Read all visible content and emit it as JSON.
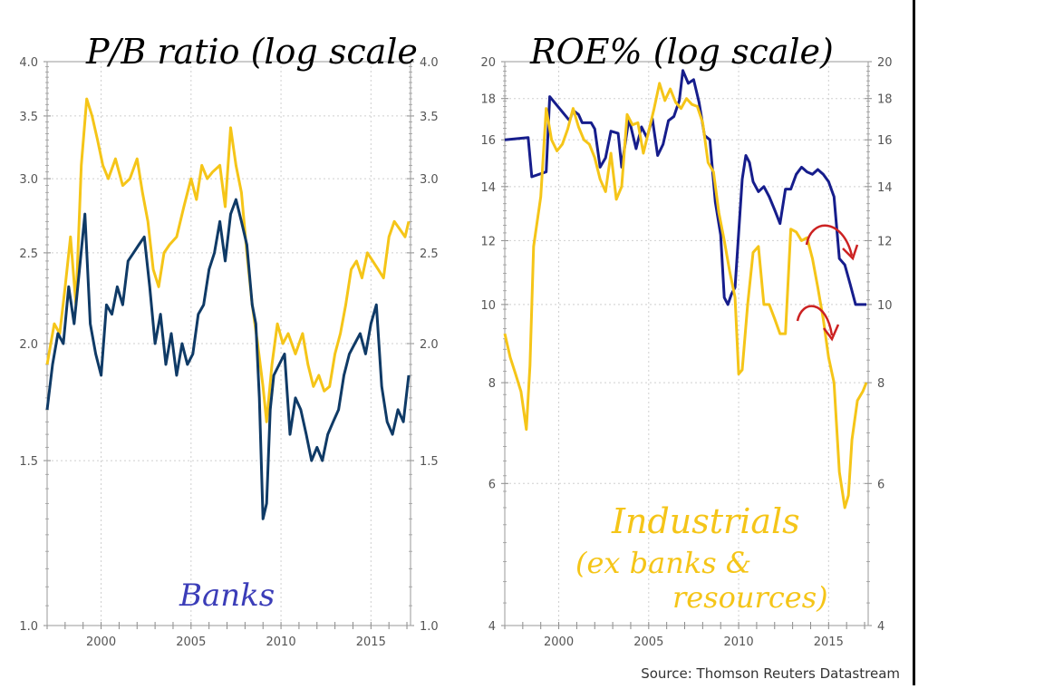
{
  "source": "Source: Thomson Reuters Datastream",
  "colors": {
    "dark_blue": "#0f3a66",
    "navy": "#161d8c",
    "yellow": "#f5c518",
    "red": "#cc2222",
    "grid": "#cfcfcf"
  },
  "chart_data": [
    {
      "type": "line",
      "title": "P/B ratio (log scale",
      "y_scale": "log",
      "ylim": [
        1.0,
        4.0
      ],
      "yticks": [
        "1.0",
        "1.5",
        "2.0",
        "2.5",
        "3.0",
        "3.5",
        "4.0"
      ],
      "xlim": [
        1997.0,
        2017.2
      ],
      "xticks": [
        "2000",
        "2005",
        "2010",
        "2015"
      ],
      "grid": true,
      "annotations": [
        "Banks"
      ],
      "series": [
        {
          "color": "#f5c518",
          "x": [
            1997.0,
            1997.4,
            1997.7,
            1998.0,
            1998.3,
            1998.6,
            1998.9,
            1999.2,
            1999.5,
            1999.8,
            2000.1,
            2000.4,
            2000.8,
            2001.2,
            2001.6,
            2002.0,
            2002.3,
            2002.6,
            2002.9,
            2003.2,
            2003.5,
            2003.8,
            2004.2,
            2004.6,
            2005.0,
            2005.3,
            2005.6,
            2005.9,
            2006.2,
            2006.6,
            2006.9,
            2007.2,
            2007.5,
            2007.8,
            2008.1,
            2008.4,
            2008.7,
            2009.0,
            2009.2,
            2009.5,
            2009.8,
            2010.1,
            2010.4,
            2010.8,
            2011.2,
            2011.5,
            2011.8,
            2012.1,
            2012.4,
            2012.7,
            2013.0,
            2013.3,
            2013.6,
            2013.9,
            2014.2,
            2014.5,
            2014.8,
            2015.1,
            2015.4,
            2015.7,
            2016.0,
            2016.3,
            2016.6,
            2016.9,
            2017.1
          ],
          "y": [
            1.9,
            2.1,
            2.05,
            2.3,
            2.6,
            2.2,
            3.1,
            3.65,
            3.5,
            3.3,
            3.1,
            3.0,
            3.15,
            2.95,
            3.0,
            3.15,
            2.9,
            2.7,
            2.4,
            2.3,
            2.5,
            2.55,
            2.6,
            2.8,
            3.0,
            2.85,
            3.1,
            3.0,
            3.05,
            3.1,
            2.8,
            3.4,
            3.1,
            2.9,
            2.5,
            2.2,
            2.0,
            1.8,
            1.65,
            1.9,
            2.1,
            2.0,
            2.05,
            1.95,
            2.05,
            1.9,
            1.8,
            1.85,
            1.78,
            1.8,
            1.95,
            2.05,
            2.2,
            2.4,
            2.45,
            2.35,
            2.5,
            2.45,
            2.4,
            2.35,
            2.6,
            2.7,
            2.65,
            2.6,
            2.7
          ]
        },
        {
          "color": "#0f3a66",
          "x": [
            1997.0,
            1997.3,
            1997.6,
            1997.9,
            1998.2,
            1998.5,
            1998.8,
            1999.1,
            1999.4,
            1999.7,
            2000.0,
            2000.3,
            2000.6,
            2000.9,
            2001.2,
            2001.5,
            2001.8,
            2002.1,
            2002.4,
            2002.7,
            2003.0,
            2003.3,
            2003.6,
            2003.9,
            2004.2,
            2004.5,
            2004.8,
            2005.1,
            2005.4,
            2005.7,
            2006.0,
            2006.3,
            2006.6,
            2006.9,
            2007.2,
            2007.5,
            2007.8,
            2008.1,
            2008.4,
            2008.6,
            2008.8,
            2009.0,
            2009.2,
            2009.4,
            2009.6,
            2009.9,
            2010.2,
            2010.5,
            2010.8,
            2011.1,
            2011.4,
            2011.7,
            2012.0,
            2012.3,
            2012.6,
            2012.9,
            2013.2,
            2013.5,
            2013.8,
            2014.1,
            2014.4,
            2014.7,
            2015.0,
            2015.3,
            2015.6,
            2015.9,
            2016.2,
            2016.5,
            2016.8,
            2017.1
          ],
          "y": [
            1.7,
            1.9,
            2.05,
            2.0,
            2.3,
            2.1,
            2.4,
            2.75,
            2.1,
            1.95,
            1.85,
            2.2,
            2.15,
            2.3,
            2.2,
            2.45,
            2.5,
            2.55,
            2.6,
            2.3,
            2.0,
            2.15,
            1.9,
            2.05,
            1.85,
            2.0,
            1.9,
            1.95,
            2.15,
            2.2,
            2.4,
            2.5,
            2.7,
            2.45,
            2.75,
            2.85,
            2.7,
            2.55,
            2.2,
            2.1,
            1.75,
            1.3,
            1.35,
            1.7,
            1.85,
            1.9,
            1.95,
            1.6,
            1.75,
            1.7,
            1.6,
            1.5,
            1.55,
            1.5,
            1.6,
            1.65,
            1.7,
            1.85,
            1.95,
            2.0,
            2.05,
            1.95,
            2.1,
            2.2,
            1.8,
            1.65,
            1.6,
            1.7,
            1.65,
            1.85
          ]
        }
      ]
    },
    {
      "type": "line",
      "title": "ROE% (log scale)",
      "y_scale": "log",
      "ylim": [
        4,
        20
      ],
      "yticks": [
        "4",
        "6",
        "8",
        "10",
        "12",
        "14",
        "16",
        "18",
        "20"
      ],
      "xlim": [
        1997.0,
        2017.2
      ],
      "xticks": [
        "2000",
        "2005",
        "2010",
        "2015"
      ],
      "grid": true,
      "annotations": [
        "Industrials",
        "(ex banks &",
        "resources)"
      ],
      "series": [
        {
          "color": "#161d8c",
          "x": [
            1997.0,
            1998.3,
            1998.5,
            1999.3,
            1999.5,
            2000.6,
            2000.8,
            2001.1,
            2001.3,
            2001.8,
            2002.0,
            2002.3,
            2002.6,
            2002.9,
            2003.3,
            2003.5,
            2003.9,
            2004.3,
            2004.6,
            2004.9,
            2005.2,
            2005.5,
            2005.8,
            2006.1,
            2006.4,
            2006.7,
            2006.9,
            2007.2,
            2007.5,
            2007.8,
            2008.1,
            2008.4,
            2008.7,
            2009.0,
            2009.2,
            2009.4,
            2009.6,
            2009.8,
            2010.2,
            2010.4,
            2010.6,
            2010.8,
            2011.1,
            2011.4,
            2011.7,
            2012.0,
            2012.3,
            2012.6,
            2012.9,
            2013.2,
            2013.5,
            2013.8,
            2014.1,
            2014.4,
            2014.7,
            2015.0,
            2015.3,
            2015.6,
            2015.9,
            2016.2,
            2016.5,
            2016.8,
            2017.1
          ],
          "y": [
            16.0,
            16.1,
            14.4,
            14.6,
            18.1,
            16.9,
            17.4,
            17.2,
            16.8,
            16.8,
            16.5,
            14.8,
            15.2,
            16.4,
            16.3,
            14.8,
            17.0,
            15.6,
            16.6,
            16.1,
            17.0,
            15.3,
            15.8,
            16.9,
            17.1,
            17.9,
            19.5,
            18.8,
            19.0,
            17.8,
            16.2,
            16.0,
            13.4,
            12.2,
            10.2,
            10.0,
            10.3,
            10.5,
            14.3,
            15.3,
            15.0,
            14.2,
            13.8,
            14.0,
            13.6,
            13.1,
            12.6,
            13.9,
            13.9,
            14.5,
            14.8,
            14.6,
            14.5,
            14.7,
            14.5,
            14.2,
            13.6,
            11.4,
            11.2,
            10.6,
            10.0,
            10.0,
            10.0
          ]
        },
        {
          "color": "#f5c518",
          "x": [
            1997.0,
            1997.3,
            1997.6,
            1997.9,
            1998.2,
            1998.4,
            1998.6,
            1999.0,
            1999.3,
            1999.6,
            1999.9,
            2000.2,
            2000.5,
            2000.8,
            2001.1,
            2001.4,
            2001.7,
            2002.0,
            2002.3,
            2002.6,
            2002.9,
            2003.2,
            2003.5,
            2003.8,
            2004.1,
            2004.4,
            2004.7,
            2005.0,
            2005.3,
            2005.6,
            2005.9,
            2006.2,
            2006.5,
            2006.8,
            2007.1,
            2007.4,
            2007.7,
            2008.0,
            2008.3,
            2008.6,
            2008.9,
            2009.2,
            2009.5,
            2009.8,
            2010.0,
            2010.2,
            2010.5,
            2010.8,
            2011.1,
            2011.4,
            2011.7,
            2012.0,
            2012.3,
            2012.6,
            2012.9,
            2013.2,
            2013.5,
            2013.8,
            2014.1,
            2014.4,
            2014.7,
            2015.0,
            2015.3,
            2015.6,
            2015.9,
            2016.1,
            2016.3,
            2016.6,
            2016.9,
            2017.1
          ],
          "y": [
            9.2,
            8.6,
            8.2,
            7.8,
            7.0,
            8.4,
            11.8,
            13.6,
            17.5,
            16.0,
            15.5,
            15.8,
            16.5,
            17.5,
            16.6,
            16.0,
            15.8,
            15.2,
            14.3,
            13.8,
            15.4,
            13.5,
            14.0,
            17.2,
            16.7,
            16.8,
            15.4,
            16.4,
            17.5,
            18.8,
            17.9,
            18.5,
            17.8,
            17.5,
            18.0,
            17.7,
            17.6,
            16.8,
            15.0,
            14.6,
            13.0,
            12.0,
            11.0,
            10.2,
            8.2,
            8.3,
            10.0,
            11.6,
            11.8,
            10.0,
            10.0,
            9.6,
            9.2,
            9.2,
            12.4,
            12.3,
            12.0,
            12.1,
            11.4,
            10.5,
            9.6,
            8.6,
            8.0,
            6.2,
            5.6,
            5.8,
            6.8,
            7.6,
            7.8,
            8.0
          ]
        }
      ]
    }
  ]
}
